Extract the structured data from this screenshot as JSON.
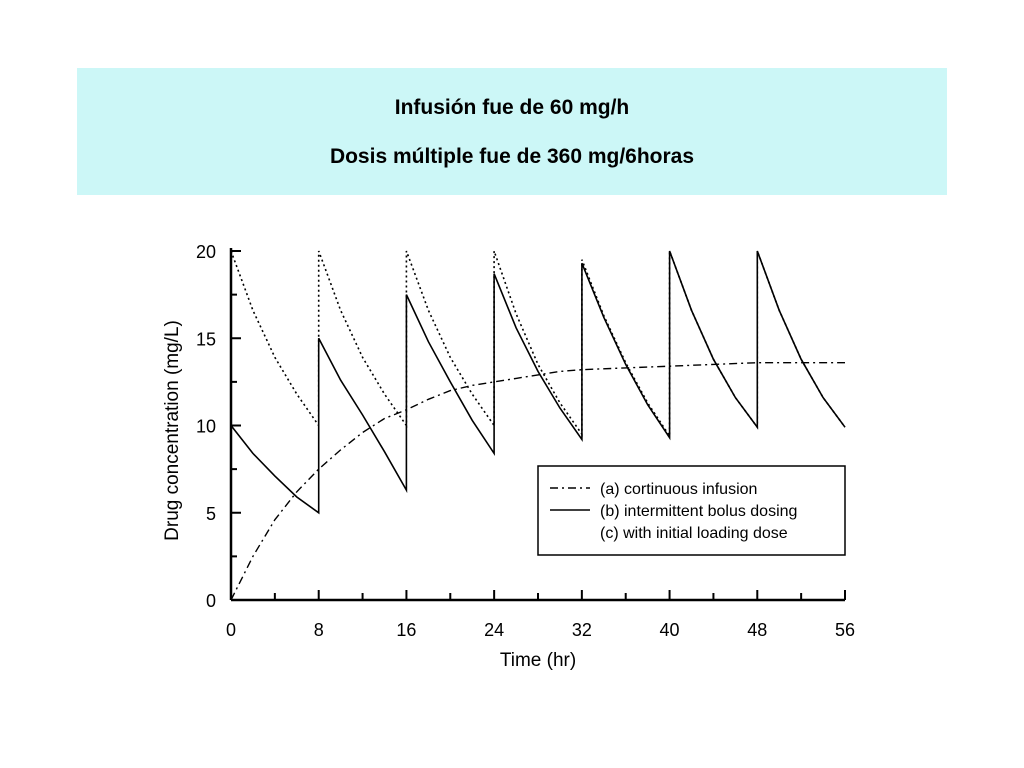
{
  "header": {
    "line1": "Infusión fue de 60 mg/h",
    "line2": "Dosis múltiple fue de 360 mg/6horas",
    "background": "#ccf7f7"
  },
  "chart_data": {
    "type": "line",
    "xlabel": "Time (hr)",
    "ylabel": "Drug concentration (mg/L)",
    "xlim": [
      0,
      56
    ],
    "ylim": [
      0,
      20
    ],
    "x_ticks": [
      "0",
      "8",
      "16",
      "24",
      "32",
      "40",
      "48",
      "56"
    ],
    "y_ticks": [
      "0",
      "5",
      "10",
      "15",
      "20"
    ],
    "grid": false,
    "legend_position": "lower-right",
    "series": [
      {
        "name": "(a) cortinuous infusion",
        "style": "dash-dot",
        "x": [
          0,
          2,
          4,
          6,
          8,
          10,
          12,
          14,
          16,
          18,
          20,
          22,
          24,
          26,
          28,
          30,
          32,
          36,
          40,
          44,
          48,
          52,
          56
        ],
        "y": [
          0,
          2.5,
          4.6,
          6.2,
          7.5,
          8.6,
          9.6,
          10.4,
          10.9,
          11.5,
          12.0,
          12.3,
          12.5,
          12.7,
          12.9,
          13.1,
          13.2,
          13.3,
          13.4,
          13.5,
          13.6,
          13.6,
          13.6
        ]
      },
      {
        "name": "(b) intermittent bolus dosing",
        "style": "solid",
        "x": [
          0,
          2,
          4,
          6,
          8,
          8,
          10,
          12,
          14,
          16,
          16,
          18,
          20,
          22,
          24,
          24,
          26,
          28,
          30,
          32,
          32,
          34,
          36,
          38,
          40,
          40,
          42,
          44,
          46,
          48,
          48,
          50,
          52,
          54,
          56
        ],
        "y": [
          10,
          8.4,
          7.1,
          5.9,
          5.0,
          15.0,
          12.6,
          10.6,
          8.5,
          6.3,
          17.5,
          14.8,
          12.5,
          10.3,
          8.4,
          18.7,
          15.6,
          13.1,
          11.0,
          9.2,
          19.3,
          16.2,
          13.5,
          11.2,
          9.3,
          20.0,
          16.6,
          13.8,
          11.6,
          9.9,
          20.0,
          16.6,
          13.8,
          11.6,
          9.9
        ]
      },
      {
        "name": "(c) with initial loading dose",
        "style": "dotted",
        "x": [
          0,
          2,
          4,
          6,
          8,
          8,
          10,
          12,
          14,
          16,
          16,
          18,
          20,
          22,
          24,
          24,
          26,
          28,
          30,
          32,
          32,
          34,
          36,
          38,
          40,
          40,
          42,
          44,
          46,
          48,
          48,
          50,
          52,
          54,
          56
        ],
        "y": [
          20,
          16.6,
          13.9,
          11.8,
          10.0,
          20.0,
          16.6,
          13.9,
          11.8,
          10.0,
          20.0,
          16.6,
          13.9,
          11.8,
          10.0,
          20.0,
          16.4,
          13.5,
          11.3,
          9.5,
          19.5,
          16.3,
          13.6,
          11.3,
          9.4,
          20.0,
          16.6,
          13.8,
          11.6,
          9.9,
          20.0,
          16.6,
          13.8,
          11.6,
          9.9
        ]
      }
    ]
  }
}
